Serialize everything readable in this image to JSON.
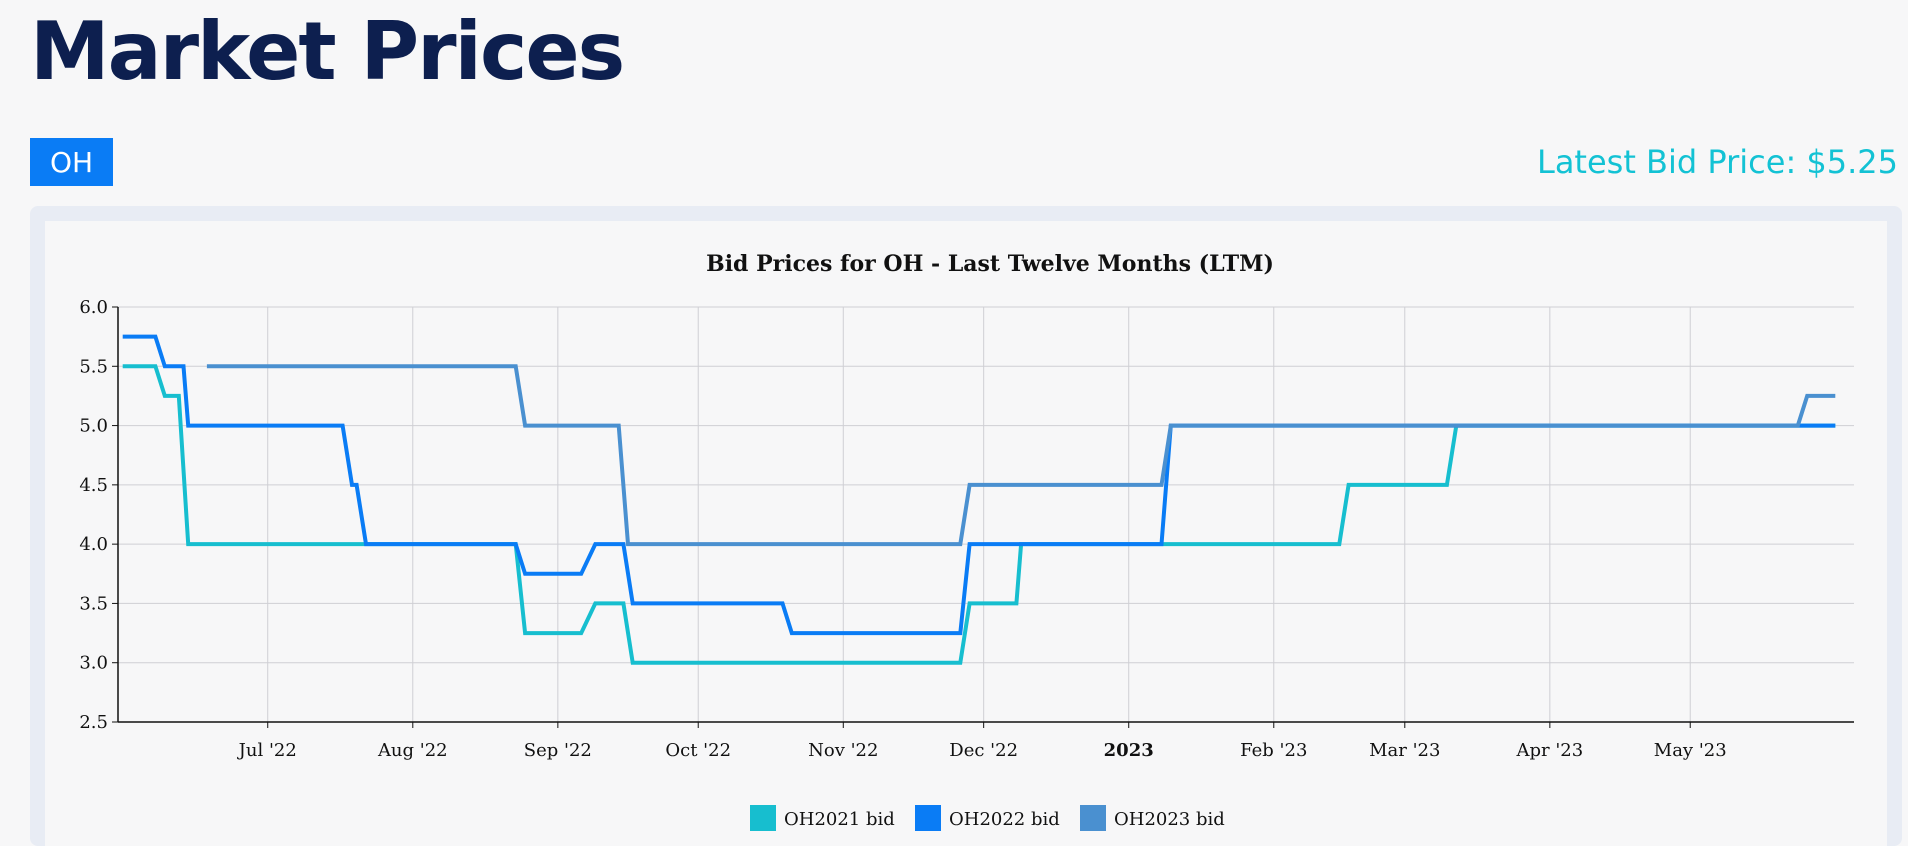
{
  "page": {
    "title": "Market Prices"
  },
  "market_tab": {
    "label": "OH"
  },
  "latest_bid": {
    "text": "Latest Bid Price: $5.25"
  },
  "colors": {
    "series": [
      "#17becf",
      "#0a7cf5",
      "#4a90d0"
    ],
    "title": "#0d1f4f",
    "accent": "#13c2d4"
  },
  "chart_data": {
    "type": "line",
    "title": "Bid Prices for OH - Last Twelve Months (LTM)",
    "xlabel": "",
    "ylabel": "",
    "ylim": [
      2.5,
      6.0
    ],
    "xlim": [
      "2022-05-30",
      "2023-06-05"
    ],
    "yticks": [
      2.5,
      3.0,
      3.5,
      4.0,
      4.5,
      5.0,
      5.5,
      6.0
    ],
    "xticks": [
      {
        "date": "2022-07-01",
        "label": "Jul '22",
        "bold": false
      },
      {
        "date": "2022-08-01",
        "label": "Aug '22",
        "bold": false
      },
      {
        "date": "2022-09-01",
        "label": "Sep '22",
        "bold": false
      },
      {
        "date": "2022-10-01",
        "label": "Oct '22",
        "bold": false
      },
      {
        "date": "2022-11-01",
        "label": "Nov '22",
        "bold": false
      },
      {
        "date": "2022-12-01",
        "label": "Dec '22",
        "bold": false
      },
      {
        "date": "2023-01-01",
        "label": "2023",
        "bold": true
      },
      {
        "date": "2023-02-01",
        "label": "Feb '23",
        "bold": false
      },
      {
        "date": "2023-03-01",
        "label": "Mar '23",
        "bold": false
      },
      {
        "date": "2023-04-01",
        "label": "Apr '23",
        "bold": false
      },
      {
        "date": "2023-05-01",
        "label": "May '23",
        "bold": false
      }
    ],
    "grid": true,
    "legend_position": "bottom-center",
    "series": [
      {
        "name": "OH2021 bid",
        "color": "#17becf",
        "points": [
          [
            "2022-05-31",
            5.5
          ],
          [
            "2022-06-07",
            5.5
          ],
          [
            "2022-06-09",
            5.25
          ],
          [
            "2022-06-12",
            5.25
          ],
          [
            "2022-06-14",
            4.0
          ],
          [
            "2022-08-23",
            4.0
          ],
          [
            "2022-08-25",
            3.25
          ],
          [
            "2022-09-06",
            3.25
          ],
          [
            "2022-09-09",
            3.5
          ],
          [
            "2022-09-15",
            3.5
          ],
          [
            "2022-09-17",
            3.0
          ],
          [
            "2022-11-26",
            3.0
          ],
          [
            "2022-11-28",
            3.5
          ],
          [
            "2022-12-08",
            3.5
          ],
          [
            "2022-12-09",
            4.0
          ],
          [
            "2023-02-15",
            4.0
          ],
          [
            "2023-02-17",
            4.5
          ],
          [
            "2023-03-10",
            4.5
          ],
          [
            "2023-03-12",
            5.0
          ],
          [
            "2023-06-01",
            5.0
          ]
        ]
      },
      {
        "name": "OH2022 bid",
        "color": "#0a7cf5",
        "points": [
          [
            "2022-05-31",
            5.75
          ],
          [
            "2022-06-07",
            5.75
          ],
          [
            "2022-06-09",
            5.5
          ],
          [
            "2022-06-13",
            5.5
          ],
          [
            "2022-06-14",
            5.0
          ],
          [
            "2022-07-17",
            5.0
          ],
          [
            "2022-07-19",
            4.5
          ],
          [
            "2022-07-20",
            4.5
          ],
          [
            "2022-07-22",
            4.0
          ],
          [
            "2022-08-23",
            4.0
          ],
          [
            "2022-08-25",
            3.75
          ],
          [
            "2022-09-06",
            3.75
          ],
          [
            "2022-09-09",
            4.0
          ],
          [
            "2022-09-15",
            4.0
          ],
          [
            "2022-09-17",
            3.5
          ],
          [
            "2022-10-19",
            3.5
          ],
          [
            "2022-10-21",
            3.25
          ],
          [
            "2022-11-26",
            3.25
          ],
          [
            "2022-11-28",
            4.0
          ],
          [
            "2023-01-08",
            4.0
          ],
          [
            "2023-01-10",
            5.0
          ],
          [
            "2023-06-01",
            5.0
          ]
        ]
      },
      {
        "name": "OH2023 bid",
        "color": "#4a90d0",
        "points": [
          [
            "2022-06-18",
            5.5
          ],
          [
            "2022-08-23",
            5.5
          ],
          [
            "2022-08-25",
            5.0
          ],
          [
            "2022-09-14",
            5.0
          ],
          [
            "2022-09-16",
            4.0
          ],
          [
            "2022-11-26",
            4.0
          ],
          [
            "2022-11-28",
            4.5
          ],
          [
            "2023-01-08",
            4.5
          ],
          [
            "2023-01-10",
            5.0
          ],
          [
            "2023-05-24",
            5.0
          ],
          [
            "2023-05-26",
            5.25
          ],
          [
            "2023-06-01",
            5.25
          ]
        ]
      }
    ]
  }
}
